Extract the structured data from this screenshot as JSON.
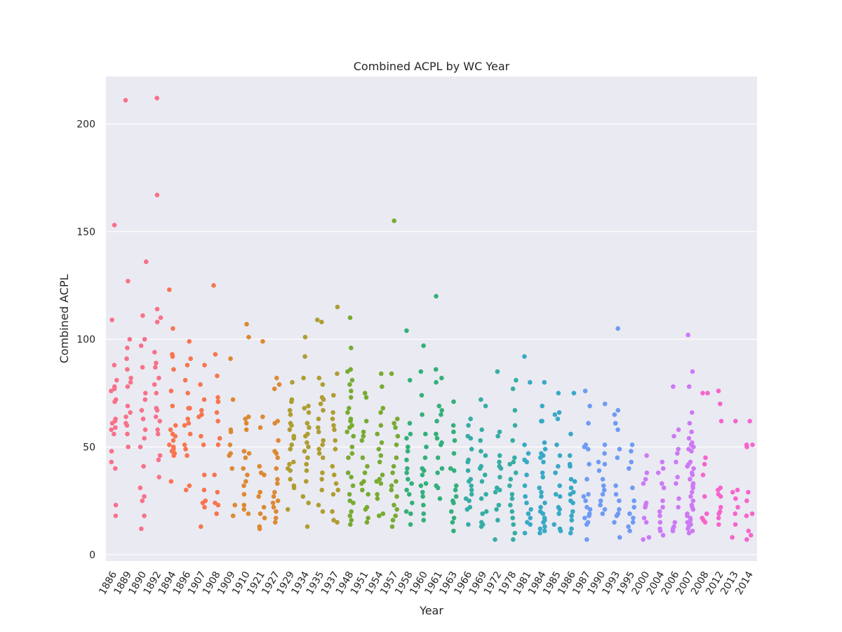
{
  "chart_data": {
    "type": "scatter",
    "subtype": "strip",
    "title": "Combined ACPL by WC Year",
    "xlabel": "Year",
    "ylabel": "Combined ACPL",
    "ylim": [
      -3,
      222
    ],
    "yticks": [
      0,
      50,
      100,
      150,
      200
    ],
    "grid": true,
    "legend": "none",
    "categories": [
      "1886",
      "1889",
      "1890",
      "1892",
      "1894",
      "1896",
      "1907",
      "1908",
      "1909",
      "1910",
      "1921",
      "1927",
      "1929",
      "1934",
      "1935",
      "1937",
      "1948",
      "1951",
      "1954",
      "1957",
      "1958",
      "1960",
      "1961",
      "1963",
      "1966",
      "1969",
      "1972",
      "1978",
      "1981",
      "1984",
      "1985",
      "1986",
      "1987",
      "1990",
      "1993",
      "1995",
      "2000",
      "2004",
      "2006",
      "2007",
      "2008",
      "2012",
      "2013",
      "2014"
    ],
    "colors": [
      "#f77189",
      "#f7754f",
      "#dc8932",
      "#ae9d31",
      "#77ab31",
      "#33b07a",
      "#36ada4",
      "#38a9c5",
      "#6e9bf4",
      "#cc7af4",
      "#f565cc"
    ],
    "series": [
      {
        "category": "1886",
        "values": [
          153,
          109,
          88,
          81,
          78,
          77,
          76,
          72,
          71,
          63,
          62,
          61,
          59,
          58,
          56,
          48,
          43,
          40,
          23,
          18
        ]
      },
      {
        "category": "1889",
        "values": [
          211,
          127,
          100,
          96,
          91,
          86,
          82,
          80,
          78,
          69,
          66,
          64,
          61,
          60,
          56,
          50
        ]
      },
      {
        "category": "1890",
        "values": [
          136,
          111,
          100,
          97,
          87,
          75,
          72,
          67,
          63,
          58,
          54,
          50,
          41,
          31,
          27,
          25,
          18,
          12
        ]
      },
      {
        "category": "1892",
        "values": [
          212,
          167,
          114,
          110,
          108,
          94,
          89,
          87,
          82,
          79,
          75,
          68,
          67,
          64,
          62,
          58,
          56,
          46,
          44,
          36
        ]
      },
      {
        "category": "1894",
        "values": [
          123,
          105,
          93,
          92,
          86,
          76,
          69,
          60,
          58,
          56,
          55,
          53,
          51,
          50,
          49,
          48,
          47,
          46,
          34
        ]
      },
      {
        "category": "1896",
        "values": [
          99,
          91,
          88,
          81,
          75,
          68,
          68,
          63,
          61,
          60,
          56,
          51,
          49,
          46,
          32,
          30
        ]
      },
      {
        "category": "1907",
        "values": [
          88,
          79,
          72,
          67,
          65,
          64,
          55,
          51,
          37,
          30,
          25,
          24,
          22,
          13
        ]
      },
      {
        "category": "1908",
        "values": [
          125,
          93,
          83,
          73,
          71,
          71,
          66,
          62,
          54,
          51,
          37,
          29,
          24,
          23,
          19
        ]
      },
      {
        "category": "1909",
        "values": [
          91,
          72,
          58,
          57,
          51,
          47,
          46,
          40,
          23,
          18
        ]
      },
      {
        "category": "1910",
        "values": [
          107,
          101,
          64,
          63,
          61,
          58,
          48,
          47,
          45,
          40,
          37,
          34,
          32,
          28,
          23,
          21,
          19
        ]
      },
      {
        "category": "1921",
        "values": [
          99,
          64,
          59,
          41,
          38,
          37,
          29,
          27,
          22,
          19,
          17,
          13,
          12
        ]
      },
      {
        "category": "1927",
        "values": [
          82,
          79,
          77,
          62,
          61,
          53,
          48,
          47,
          45,
          40,
          35,
          33,
          29,
          27,
          25,
          24,
          22,
          20,
          17,
          15
        ]
      },
      {
        "category": "1929",
        "values": [
          80,
          72,
          71,
          67,
          65,
          61,
          60,
          58,
          55,
          54,
          51,
          49,
          43,
          42,
          40,
          39,
          35,
          32,
          31,
          21
        ]
      },
      {
        "category": "1934",
        "values": [
          101,
          92,
          82,
          69,
          68,
          66,
          61,
          59,
          56,
          55,
          52,
          50,
          48,
          45,
          42,
          39,
          34,
          27,
          24,
          13
        ]
      },
      {
        "category": "1935",
        "values": [
          109,
          108,
          82,
          79,
          73,
          72,
          70,
          67,
          63,
          59,
          57,
          53,
          51,
          49,
          47,
          45,
          38,
          35,
          30,
          23,
          20
        ]
      },
      {
        "category": "1937",
        "values": [
          115,
          84,
          74,
          66,
          63,
          60,
          58,
          53,
          49,
          41,
          37,
          33,
          30,
          28,
          20,
          16,
          15
        ]
      },
      {
        "category": "1948",
        "values": [
          110,
          96,
          86,
          85,
          81,
          79,
          76,
          73,
          68,
          66,
          63,
          62,
          60,
          59,
          57,
          55,
          50,
          47,
          45,
          38,
          36,
          32,
          28,
          25,
          24,
          20,
          18,
          16,
          14
        ]
      },
      {
        "category": "1951",
        "values": [
          75,
          73,
          62,
          57,
          55,
          53,
          45,
          41,
          38,
          34,
          33,
          30,
          28,
          22,
          21,
          17,
          15
        ]
      },
      {
        "category": "1954",
        "values": [
          84,
          78,
          68,
          66,
          60,
          56,
          52,
          49,
          46,
          43,
          37,
          35,
          34,
          33,
          28,
          26,
          19,
          18
        ]
      },
      {
        "category": "1957",
        "values": [
          155,
          84,
          63,
          61,
          59,
          55,
          51,
          45,
          41,
          38,
          34,
          32,
          30,
          27,
          23,
          21,
          18,
          16,
          13
        ]
      },
      {
        "category": "1958",
        "values": [
          104,
          81,
          61,
          56,
          54,
          50,
          48,
          44,
          40,
          38,
          35,
          33,
          30,
          28,
          24,
          20,
          19,
          14
        ]
      },
      {
        "category": "1960",
        "values": [
          97,
          85,
          74,
          65,
          56,
          50,
          45,
          40,
          39,
          37,
          33,
          32,
          29,
          27,
          23,
          19,
          16
        ]
      },
      {
        "category": "1961",
        "values": [
          120,
          86,
          82,
          80,
          69,
          67,
          65,
          62,
          56,
          54,
          52,
          51,
          45,
          40,
          38,
          32,
          31,
          26
        ]
      },
      {
        "category": "1963",
        "values": [
          71,
          60,
          57,
          53,
          47,
          40,
          39,
          32,
          30,
          27,
          25,
          24,
          20,
          17,
          15,
          11
        ]
      },
      {
        "category": "1966",
        "values": [
          63,
          60,
          55,
          54,
          49,
          44,
          43,
          39,
          35,
          34,
          32,
          30,
          28,
          26,
          25,
          22,
          21,
          14
        ]
      },
      {
        "category": "1969",
        "values": [
          72,
          69,
          58,
          53,
          48,
          46,
          41,
          40,
          37,
          34,
          28,
          26,
          20,
          19,
          15,
          14,
          13
        ]
      },
      {
        "category": "1972",
        "values": [
          85,
          57,
          55,
          46,
          43,
          41,
          40,
          36,
          31,
          30,
          29,
          23,
          21,
          16,
          7
        ]
      },
      {
        "category": "1978",
        "values": [
          81,
          77,
          67,
          60,
          53,
          45,
          43,
          42,
          38,
          35,
          32,
          28,
          26,
          23,
          20,
          17,
          14,
          10,
          7
        ]
      },
      {
        "category": "1981",
        "values": [
          92,
          80,
          51,
          47,
          44,
          43,
          37,
          32,
          27,
          24,
          21,
          19,
          17,
          15,
          14,
          10
        ]
      },
      {
        "category": "1984",
        "values": [
          80,
          69,
          62,
          62,
          52,
          49,
          47,
          46,
          45,
          43,
          38,
          36,
          31,
          29,
          27,
          24,
          22,
          20,
          19,
          17,
          16,
          15,
          13,
          12,
          11,
          10
        ]
      },
      {
        "category": "1985",
        "values": [
          75,
          66,
          65,
          63,
          51,
          46,
          41,
          38,
          32,
          28,
          27,
          22,
          21,
          19,
          14,
          12,
          11
        ]
      },
      {
        "category": "1986",
        "values": [
          75,
          56,
          46,
          42,
          41,
          35,
          34,
          31,
          29,
          28,
          25,
          24,
          20,
          18,
          16,
          12,
          10
        ]
      },
      {
        "category": "1987",
        "values": [
          76,
          69,
          61,
          51,
          50,
          49,
          42,
          35,
          28,
          27,
          25,
          22,
          21,
          19,
          18,
          17,
          15,
          14,
          7
        ]
      },
      {
        "category": "1990",
        "values": [
          70,
          51,
          47,
          43,
          42,
          39,
          35,
          32,
          30,
          28,
          25,
          23,
          21,
          19
        ]
      },
      {
        "category": "1993",
        "values": [
          105,
          67,
          65,
          61,
          58,
          49,
          45,
          32,
          28,
          25,
          21,
          19,
          18,
          15,
          8
        ]
      },
      {
        "category": "1995",
        "values": [
          51,
          48,
          43,
          40,
          31,
          25,
          22,
          19,
          17,
          15,
          13,
          11
        ]
      },
      {
        "category": "2000",
        "values": [
          46,
          38,
          35,
          33,
          24,
          23,
          22,
          17,
          15,
          8,
          7
        ]
      },
      {
        "category": "2004",
        "values": [
          43,
          40,
          38,
          33,
          31,
          25,
          22,
          20,
          18,
          15,
          12,
          11,
          9
        ]
      },
      {
        "category": "2006",
        "values": [
          78,
          58,
          55,
          49,
          47,
          43,
          36,
          33,
          26,
          22,
          15,
          13,
          12,
          11
        ]
      },
      {
        "category": "2007",
        "values": [
          102,
          85,
          78,
          66,
          61,
          57,
          54,
          52,
          51,
          50,
          49,
          48,
          43,
          42,
          41,
          40,
          38,
          37,
          35,
          33,
          32,
          31,
          29,
          27,
          25,
          23,
          22,
          21,
          19,
          18,
          17,
          16,
          15,
          14,
          13,
          12,
          11,
          10
        ]
      },
      {
        "category": "2008",
        "values": [
          75,
          75,
          45,
          42,
          37,
          27,
          19,
          17,
          16,
          15
        ]
      },
      {
        "category": "2012",
        "values": [
          76,
          70,
          62,
          31,
          30,
          28,
          27,
          22,
          20,
          19,
          17,
          14
        ]
      },
      {
        "category": "2013",
        "values": [
          62,
          30,
          29,
          26,
          22,
          19,
          14,
          8
        ]
      },
      {
        "category": "2014",
        "values": [
          62,
          51,
          51,
          50,
          29,
          25,
          19,
          18,
          11,
          9,
          7
        ]
      }
    ]
  }
}
